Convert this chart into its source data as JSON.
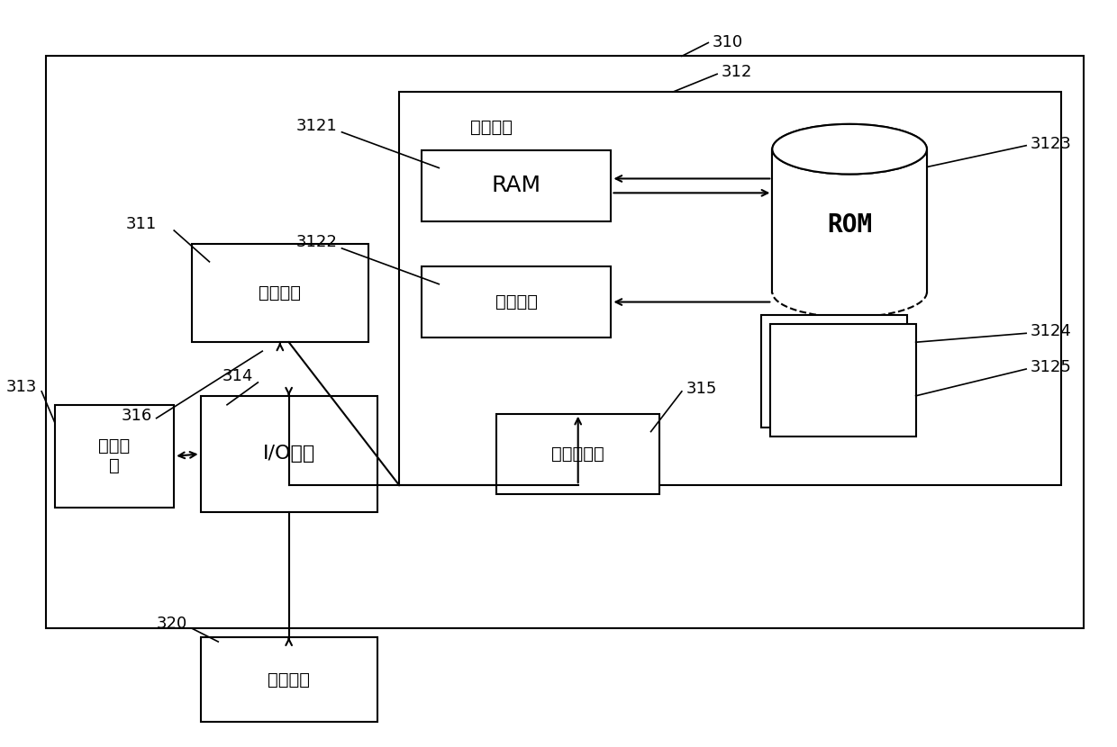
{
  "bg_color": "#ffffff",
  "fig_width": 12.4,
  "fig_height": 8.3,
  "text": {
    "RAM": "RAM",
    "cache": "高速缓存",
    "storage": "存储单元",
    "ROM": "ROM",
    "processor": "处理单元",
    "display": "显示单\n元",
    "io": "I/O接口",
    "network": "网络适配器",
    "external": "外部设备"
  },
  "labels": [
    "310",
    "311",
    "312",
    "3121",
    "3122",
    "3123",
    "3124",
    "3125",
    "313",
    "314",
    "315",
    "316",
    "320"
  ]
}
